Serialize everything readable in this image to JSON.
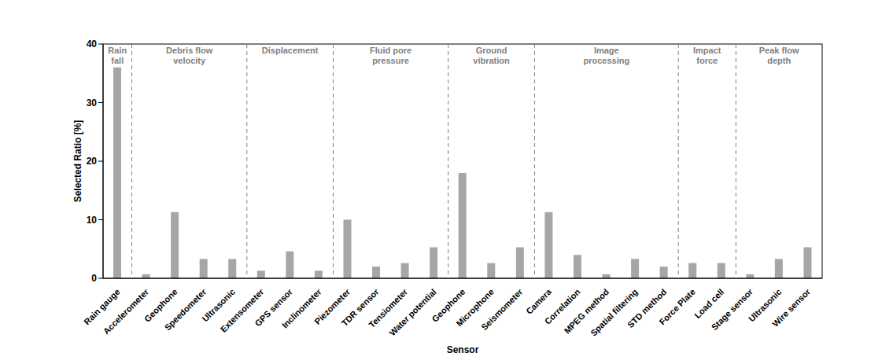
{
  "chart_data": {
    "type": "bar",
    "x_label": "Sensor",
    "y_label": "Selected Ratio [%]",
    "categories": [
      "Rain gauge",
      "Accelerometer",
      "Geophone",
      "Speedometer",
      "Ultrasonic",
      "Extensometer",
      "GPS sensor",
      "Inclinometer",
      "Piezometer",
      "TDR sensor",
      "Tensiometer",
      "Water potential",
      "Geophone",
      "Microphone",
      "Seismometer",
      "Camera",
      "Correlation",
      "MPEG method",
      "Spatial filtering",
      "STD method",
      "Force Plate",
      "Load cell",
      "Stage sensor",
      "Ultrasonic",
      "Wire sensor"
    ],
    "groups": [
      "Rain\nfall",
      "Debris flow\nvelocity",
      "Debris flow\nvelocity",
      "Debris flow\nvelocity",
      "Debris flow\nvelocity",
      "Displacement",
      "Displacement",
      "Displacement",
      "Fluid pore\npressure",
      "Fluid pore\npressure",
      "Fluid pore\npressure",
      "Fluid pore\npressure",
      "Ground\nvibration",
      "Ground\nvibration",
      "Ground\nvibration",
      "Image\nprocessing",
      "Image\nprocessing",
      "Image\nprocessing",
      "Image\nprocessing",
      "Image\nprocessing",
      "Impact\nforce",
      "Impact\nforce",
      "Peak flow\ndepth",
      "Peak flow\ndepth",
      "Peak flow\ndepth"
    ],
    "values": [
      36,
      0.7,
      11.3,
      3.3,
      3.3,
      1.3,
      4.6,
      1.3,
      10,
      2,
      2.6,
      5.3,
      18,
      2.6,
      5.3,
      11.3,
      4,
      0.7,
      3.3,
      2,
      2.6,
      2.6,
      0.7,
      3.3,
      5.3
    ],
    "color": "#a6a6a6",
    "ylim": [
      0,
      40
    ],
    "yticks": [
      0,
      10,
      20,
      30,
      40
    ],
    "grid": false
  }
}
